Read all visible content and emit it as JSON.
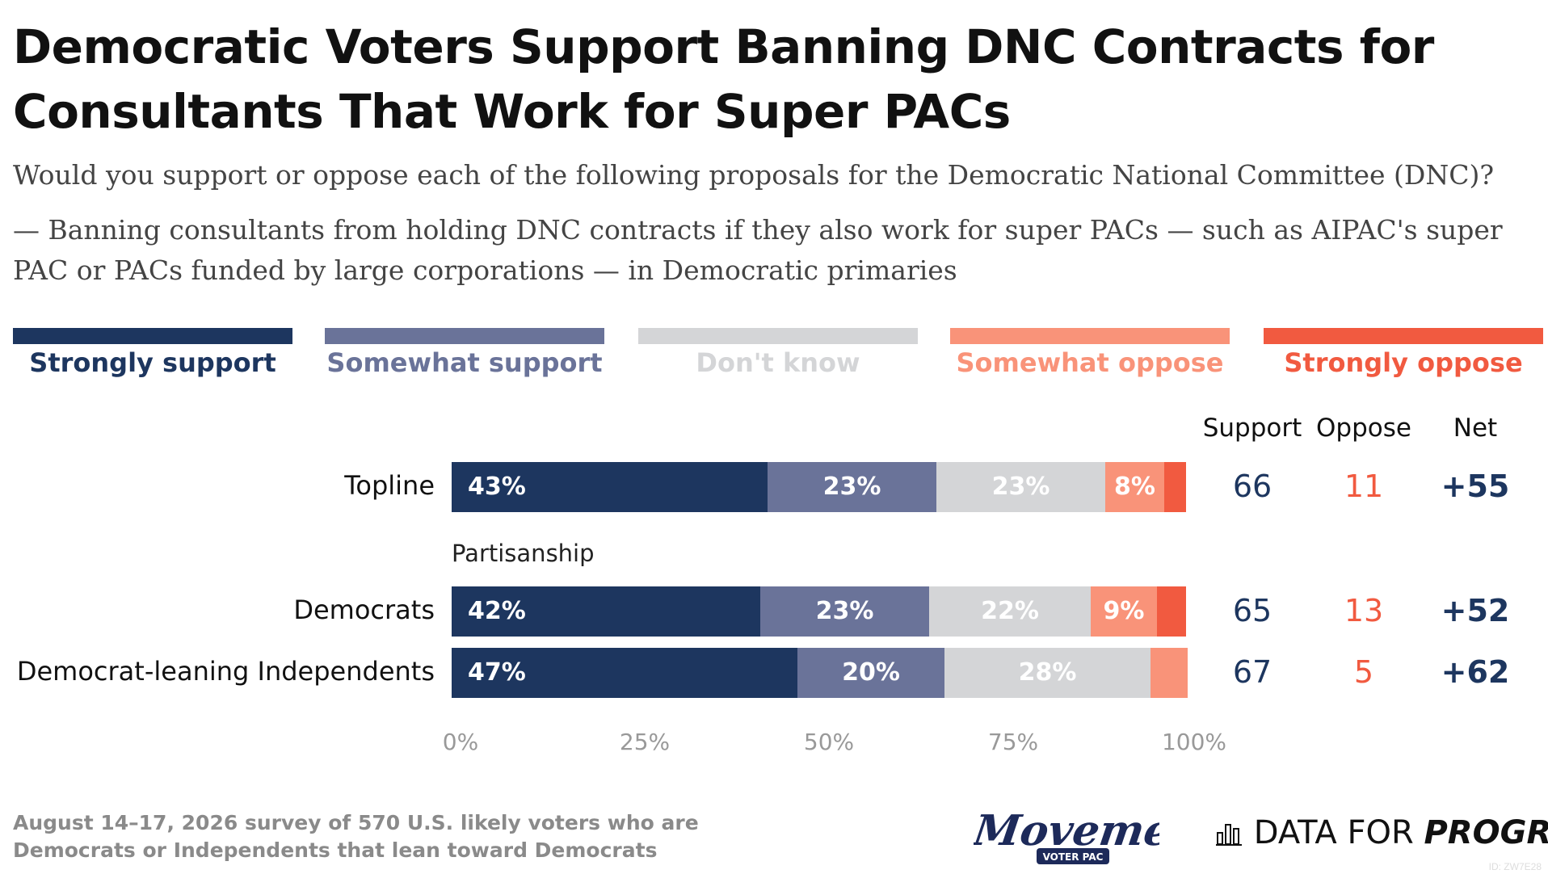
{
  "header": {
    "title": "Democratic Voters Support Banning DNC Contracts for Consultants That Work for Super PACs",
    "question": "Would you support or oppose each of the following proposals for the Democratic National Committee (DNC)?",
    "item": "— Banning consultants from holding DNC contracts if they also work for super PACs — such as AIPAC's super PAC or PACs funded by large corporations — in Democratic primaries"
  },
  "legend": [
    {
      "label": "Strongly support",
      "color": "#1d365f"
    },
    {
      "label": "Somewhat support",
      "color": "#6a7399"
    },
    {
      "label": "Don't know",
      "color": "#d4d5d7"
    },
    {
      "label": "Somewhat oppose",
      "color": "#f99379"
    },
    {
      "label": "Strongly oppose",
      "color": "#f15a40"
    }
  ],
  "columns": {
    "support": "Support",
    "oppose": "Oppose",
    "net": "Net"
  },
  "colors": {
    "support_text": "#1d365f",
    "oppose_text": "#f15a40",
    "axis_text": "#999999"
  },
  "chart_data": {
    "type": "bar",
    "orientation": "horizontal",
    "stacked": true,
    "xlim": [
      0,
      100
    ],
    "x_ticks": [
      "0%",
      "25%",
      "50%",
      "75%",
      "100%"
    ],
    "series": [
      {
        "name": "Strongly support"
      },
      {
        "name": "Somewhat support"
      },
      {
        "name": "Don't know"
      },
      {
        "name": "Somewhat oppose"
      },
      {
        "name": "Strongly oppose"
      }
    ],
    "rows": [
      {
        "label": "Topline",
        "values": [
          43,
          23,
          23,
          8,
          3
        ],
        "labels": [
          "43%",
          "23%",
          "23%",
          "8%",
          ""
        ],
        "support": "66",
        "oppose": "11",
        "net": "+55"
      },
      {
        "group": "Partisanship",
        "label": "Democrats",
        "values": [
          42,
          23,
          22,
          9,
          4
        ],
        "labels": [
          "42%",
          "23%",
          "22%",
          "9%",
          ""
        ],
        "support": "65",
        "oppose": "13",
        "net": "+52"
      },
      {
        "label": "Democrat-leaning Independents",
        "values": [
          47,
          20,
          28,
          5,
          0
        ],
        "labels": [
          "47%",
          "20%",
          "28%",
          "",
          ""
        ],
        "support": "67",
        "oppose": "5",
        "net": "+62"
      }
    ]
  },
  "footer": {
    "note": "August 14–17, 2026 survey of 570 U.S. likely voters who are Democrats or Independents that lean toward Democrats",
    "logo_movement_main": "Movement",
    "logo_movement_sub": "VOTER PAC",
    "logo_dfp_prefix": "DATA FOR",
    "logo_dfp_suffix": "PROGRESS",
    "id_tag": "ID: ZW7E28"
  }
}
